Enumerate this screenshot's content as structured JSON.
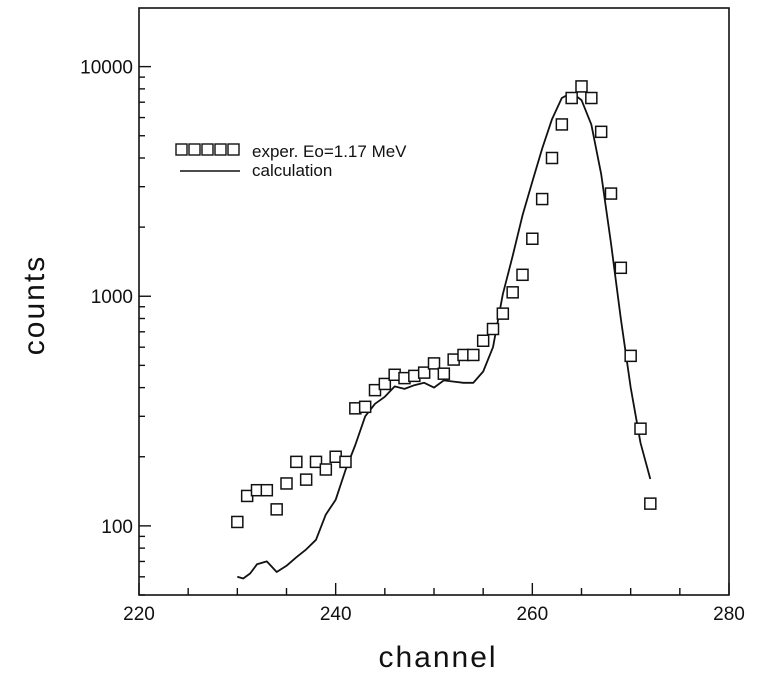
{
  "chart_data": {
    "type": "scatter",
    "title": "",
    "xlabel": "channel",
    "ylabel": "counts",
    "xlim": [
      220,
      280
    ],
    "ylim": [
      50,
      18000
    ],
    "yscale": "log",
    "xticks": [
      220,
      240,
      260,
      280
    ],
    "yticks": [
      100,
      1000,
      10000
    ],
    "xtick_labels": [
      "220",
      "240",
      "260",
      "280"
    ],
    "ytick_labels": [
      "100",
      "1000",
      "10000"
    ],
    "grid": false,
    "legend_position": "top-left",
    "series": [
      {
        "name": "exper. Eo=1.17 MeV",
        "style": "square-markers",
        "x": [
          230,
          231,
          232,
          233,
          234,
          235,
          236,
          237,
          238,
          239,
          240,
          241,
          242,
          243,
          244,
          245,
          246,
          247,
          248,
          249,
          250,
          251,
          252,
          253,
          254,
          255,
          256,
          257,
          258,
          259,
          260,
          261,
          262,
          263,
          264,
          265,
          266,
          267,
          268,
          269,
          270,
          271,
          272
        ],
        "y": [
          104,
          135,
          143,
          143,
          118,
          153,
          190,
          159,
          190,
          176,
          200,
          190,
          325,
          330,
          390,
          415,
          455,
          440,
          450,
          465,
          510,
          460,
          530,
          555,
          555,
          640,
          720,
          840,
          1040,
          1240,
          1780,
          2650,
          4000,
          5600,
          7300,
          8200,
          7300,
          5200,
          2800,
          1330,
          550,
          265,
          125
        ]
      },
      {
        "name": "calculation",
        "style": "line",
        "x": [
          230,
          230.6,
          231.3,
          232,
          233,
          234,
          235,
          236,
          237,
          238,
          239,
          240,
          241,
          242,
          243,
          244,
          245,
          246,
          247,
          248,
          249,
          250,
          251,
          252,
          253,
          254,
          255,
          256,
          257,
          258,
          259,
          260,
          261,
          262,
          263,
          264,
          265,
          266,
          267,
          268,
          269,
          270,
          271,
          272
        ],
        "y": [
          60,
          59,
          62,
          68,
          70,
          63,
          67,
          73,
          79,
          87,
          112,
          130,
          175,
          225,
          300,
          340,
          365,
          405,
          395,
          410,
          420,
          400,
          430,
          425,
          420,
          420,
          470,
          600,
          1020,
          1500,
          2250,
          3150,
          4400,
          5900,
          7300,
          7700,
          7150,
          5600,
          3400,
          1700,
          800,
          400,
          230,
          160
        ]
      }
    ]
  }
}
